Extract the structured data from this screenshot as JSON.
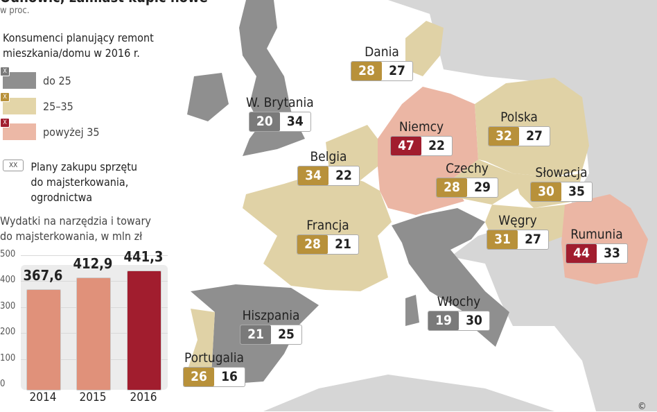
{
  "title": "Odnowić, zamiast kupić nowe",
  "subtitle": "w proc.",
  "legend": {
    "heading": "Konsumenci planujący remont mieszkania/domu w 2016 r.",
    "heading_l1": "Konsumenci planujący remont",
    "heading_l2": "mieszkania/domu w 2016 r.",
    "items": [
      {
        "label": "do 25",
        "color": "#8f8f8f"
      },
      {
        "label": "25–35",
        "color": "#e3d5a8"
      },
      {
        "label": "powyżej 35",
        "color": "#ecb8a6"
      }
    ],
    "marker": "X",
    "plans_marker": "XX",
    "plans_l1": "Plany zakupu sprzętu",
    "plans_l2": "do majsterkowania,",
    "plans_l3": "ogrodnictwa"
  },
  "colors": {
    "gray_badge": "#7a7a7a",
    "gold_badge": "#b8913a",
    "red_badge": "#a11d2e",
    "gray_land": "#8f8f8f",
    "tan_land": "#e0d2a6",
    "pink_land": "#ebb6a4",
    "other_land": "#d6d6d6"
  },
  "countries": [
    {
      "name": "Dania",
      "renovation": 28,
      "plans": 27,
      "level": "gold"
    },
    {
      "name": "W. Brytania",
      "renovation": 20,
      "plans": 34,
      "level": "gray"
    },
    {
      "name": "Niemcy",
      "renovation": 47,
      "plans": 22,
      "level": "red"
    },
    {
      "name": "Polska",
      "renovation": 32,
      "plans": 27,
      "level": "gold"
    },
    {
      "name": "Belgia",
      "renovation": 34,
      "plans": 22,
      "level": "gold"
    },
    {
      "name": "Czechy",
      "renovation": 28,
      "plans": 29,
      "level": "gold"
    },
    {
      "name": "Słowacja",
      "renovation": 30,
      "plans": 35,
      "level": "gold"
    },
    {
      "name": "Francja",
      "renovation": 28,
      "plans": 21,
      "level": "gold"
    },
    {
      "name": "Węgry",
      "renovation": 31,
      "plans": 27,
      "level": "gold"
    },
    {
      "name": "Rumunia",
      "renovation": 44,
      "plans": 33,
      "level": "red"
    },
    {
      "name": "Włochy",
      "renovation": 19,
      "plans": 30,
      "level": "gray"
    },
    {
      "name": "Hiszpania",
      "renovation": 21,
      "plans": 25,
      "level": "gray"
    },
    {
      "name": "Portugalia",
      "renovation": 26,
      "plans": 16,
      "level": "gold"
    }
  ],
  "chart_data": {
    "type": "bar",
    "title": "Wydatki na narzędzia i towary do majsterkowania, w mln zł",
    "title_l1": "Wydatki na narzędzia i towary",
    "title_l2": "do majsterkowania, w mln zł",
    "categories": [
      "2014",
      "2015",
      "2016"
    ],
    "values": [
      367.6,
      412.9,
      441.3
    ],
    "value_labels": [
      "367,6",
      "412,9",
      "441,3"
    ],
    "ylim": [
      0,
      500
    ],
    "yticks": [
      "0",
      "100",
      "200",
      "300",
      "400",
      "500"
    ],
    "colors": [
      "#e0917a",
      "#e0917a",
      "#a11d2e"
    ],
    "grid": true
  }
}
